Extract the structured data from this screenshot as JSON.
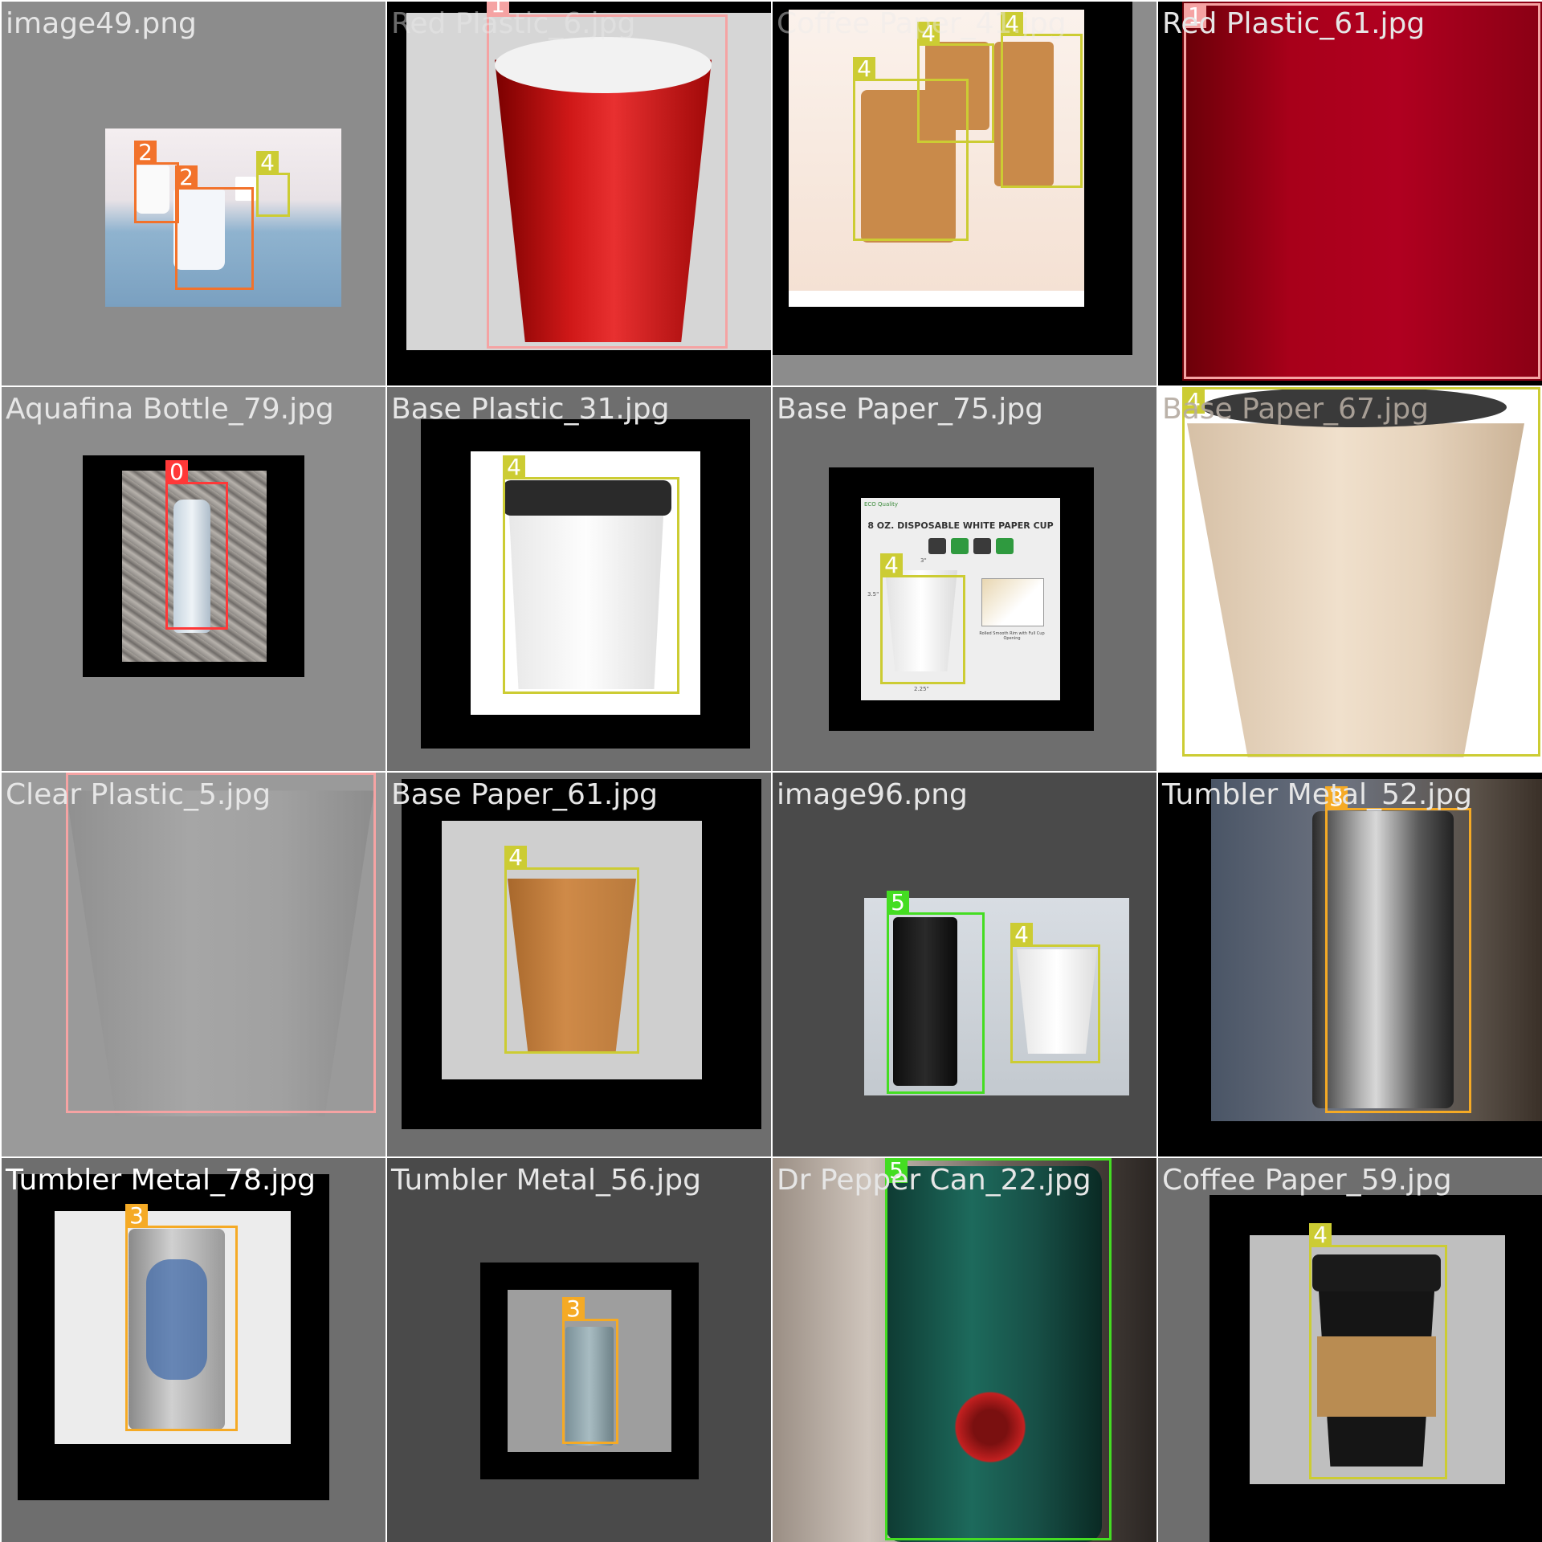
{
  "mosaic": {
    "tiles": [
      {
        "filename": "image49.png",
        "boxes": [
          {
            "class_id": "2",
            "color": "#f2722b"
          },
          {
            "class_id": "2",
            "color": "#f2722b"
          },
          {
            "class_id": "4",
            "color": "#cccc33"
          }
        ]
      },
      {
        "filename": "Red Plastic_6.jpg",
        "boxes": [
          {
            "class_id": "1",
            "color": "#f5a3a3"
          }
        ]
      },
      {
        "filename": "Coffee Paper_41.jpg",
        "boxes": [
          {
            "class_id": "4",
            "color": "#cccc33"
          },
          {
            "class_id": "4",
            "color": "#cccc33"
          },
          {
            "class_id": "4",
            "color": "#cccc33"
          }
        ]
      },
      {
        "filename": "Red Plastic_61.jpg",
        "boxes": [
          {
            "class_id": "1",
            "color": "#f5a3a3"
          }
        ]
      },
      {
        "filename": "Aquafina Bottle_79.jpg",
        "boxes": [
          {
            "class_id": "0",
            "color": "#ff3838"
          }
        ]
      },
      {
        "filename": "Base Plastic_31.jpg",
        "boxes": [
          {
            "class_id": "4",
            "color": "#cccc33"
          }
        ]
      },
      {
        "filename": "Base Paper_75.jpg",
        "boxes": [
          {
            "class_id": "4",
            "color": "#cccc33"
          }
        ],
        "product_card": {
          "title": "8 OZ. DISPOSABLE WHITE PAPER CUP",
          "logo": "ECO Quality",
          "height_label": "3.5\"",
          "top_label": "3\"",
          "bottom_label": "2.25\"",
          "caption": "Rolled Smooth Rim with Full Cup Opening"
        }
      },
      {
        "filename": "Base Paper_67.jpg",
        "boxes": [
          {
            "class_id": "4",
            "color": "#cccc33"
          }
        ]
      },
      {
        "filename": "Clear Plastic_5.jpg",
        "boxes": [
          {
            "class_id": "1",
            "color": "#f5a3a3"
          }
        ]
      },
      {
        "filename": "Base Paper_61.jpg",
        "boxes": [
          {
            "class_id": "4",
            "color": "#cccc33"
          }
        ]
      },
      {
        "filename": "image96.png",
        "boxes": [
          {
            "class_id": "5",
            "color": "#44dd22"
          },
          {
            "class_id": "4",
            "color": "#cccc33"
          }
        ]
      },
      {
        "filename": "Tumbler Metal_52.jpg",
        "boxes": [
          {
            "class_id": "3",
            "color": "#f5aa25"
          }
        ]
      },
      {
        "filename": "Tumbler Metal_78.jpg",
        "boxes": [
          {
            "class_id": "3",
            "color": "#f5aa25"
          }
        ]
      },
      {
        "filename": "Tumbler Metal_56.jpg",
        "boxes": [
          {
            "class_id": "3",
            "color": "#f5aa25"
          }
        ]
      },
      {
        "filename": "Dr Pepper Can_22.jpg",
        "boxes": [
          {
            "class_id": "5",
            "color": "#44dd22"
          }
        ]
      },
      {
        "filename": "Coffee Paper_59.jpg",
        "boxes": [
          {
            "class_id": "4",
            "color": "#cccc33"
          }
        ]
      }
    ]
  }
}
